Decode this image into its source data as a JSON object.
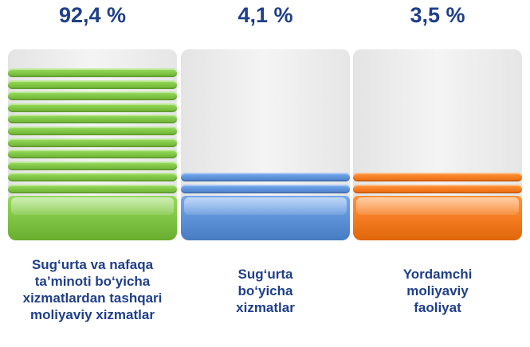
{
  "chart_data": {
    "type": "bar",
    "categories": [
      "Sug‘urta va nafaqa ta’minoti bo‘yicha xizmatlardan tashqari moliyaviy xizmatlar",
      "Sug‘urta bo‘yicha xizmatlar",
      "Yordamchi moliyaviy faoliyat"
    ],
    "values": [
      92.4,
      4.1,
      3.5
    ],
    "value_labels": [
      "92,4 %",
      "4,1 %",
      "3,5 %"
    ],
    "category_lines": [
      [
        "Sug‘urta va nafaqa",
        "ta’minoti bo‘yicha",
        "xizmatlardan tashqari",
        "moliyaviy xizmatlar"
      ],
      [
        "Sug‘urta",
        "bo‘yicha",
        "xizmatlar"
      ],
      [
        "Yordamchi",
        "moliyaviy",
        "faoliyat"
      ]
    ],
    "colors": [
      "#7dc242",
      "#5b8fd6",
      "#f47a20"
    ],
    "ylim": [
      0,
      100
    ],
    "grid": false
  }
}
